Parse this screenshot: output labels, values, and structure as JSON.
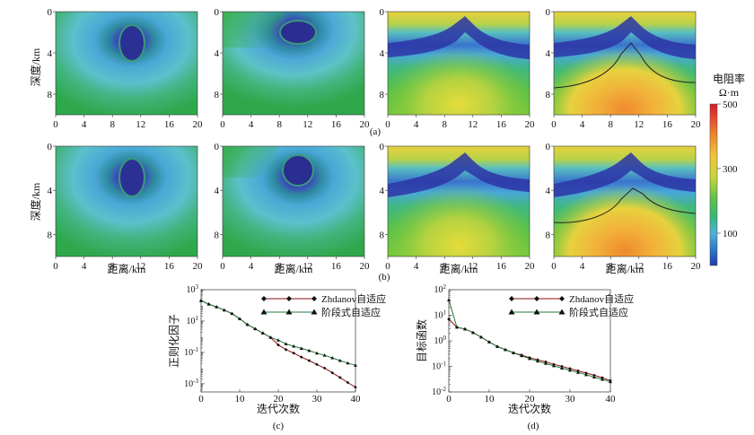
{
  "labels": {
    "depth_axis": "深度/km",
    "distance_axis": "距离/km",
    "colorbar_title": "电阻率",
    "colorbar_unit": "Ω·m",
    "caption_a": "(a)",
    "caption_b": "(b)",
    "caption_c": "(c)",
    "caption_d": "(d)"
  },
  "section_panels": {
    "x_ticks": [
      "0",
      "4",
      "8",
      "12",
      "16",
      "20"
    ],
    "y_ticks": [
      "0",
      "4",
      "8"
    ],
    "x_range_km": [
      0,
      20
    ],
    "depth_range_km": [
      0,
      10
    ]
  },
  "colorbar": {
    "ticks": [
      "500",
      "300",
      "100"
    ],
    "tick_values": [
      500,
      300,
      100
    ],
    "range": [
      0,
      500
    ],
    "colors": [
      "#1f3fae",
      "#2f78c8",
      "#4fb2d8",
      "#37b878",
      "#64c24a",
      "#c8d63a",
      "#f0c437",
      "#ee8a2e",
      "#e8442f",
      "#d21f2a"
    ]
  },
  "chart_data": [
    {
      "type": "line",
      "title": "",
      "xlabel": "迭代次数",
      "ylabel": "正则化因子",
      "x_range": [
        0,
        40
      ],
      "yscale": "log",
      "ylim": [
        0.0003,
        1000
      ],
      "x_ticks": [
        "0",
        "10",
        "20",
        "30",
        "40"
      ],
      "y_ticks": [
        {
          "value": 1000,
          "base": "10",
          "exp": "3"
        },
        {
          "value": 10,
          "base": "10",
          "exp": "1"
        },
        {
          "value": 0.1,
          "base": "10",
          "exp": "-1"
        },
        {
          "value": 0.001,
          "base": "10",
          "exp": "-3"
        }
      ],
      "legend": [
        "Zhdanov自适应",
        "阶段式自适应"
      ],
      "series": [
        {
          "name": "Zhdanov自适应",
          "color": "#8a1010",
          "marker": "diamond",
          "x": [
            0,
            2,
            4,
            6,
            8,
            10,
            12,
            14,
            16,
            18,
            20,
            22,
            24,
            26,
            28,
            30,
            32,
            34,
            36,
            38,
            40
          ],
          "values": [
            200,
            120,
            80,
            50,
            30,
            14,
            6,
            3.2,
            1.7,
            0.9,
            0.3,
            0.15,
            0.09,
            0.05,
            0.03,
            0.017,
            0.01,
            0.005,
            0.0025,
            0.0012,
            0.0006
          ]
        },
        {
          "name": "阶段式自适应",
          "color": "#1e7a3a",
          "marker": "triangle",
          "x": [
            0,
            2,
            4,
            6,
            8,
            10,
            12,
            14,
            16,
            18,
            20,
            22,
            24,
            26,
            28,
            30,
            32,
            34,
            36,
            38,
            40
          ],
          "values": [
            200,
            120,
            80,
            50,
            30,
            14,
            6,
            3.2,
            1.7,
            0.9,
            0.6,
            0.35,
            0.25,
            0.18,
            0.13,
            0.09,
            0.065,
            0.045,
            0.03,
            0.021,
            0.015
          ]
        }
      ]
    },
    {
      "type": "line",
      "title": "",
      "xlabel": "迭代次数",
      "ylabel": "目标函数",
      "x_range": [
        0,
        40
      ],
      "yscale": "log",
      "ylim": [
        0.01,
        100
      ],
      "x_ticks": [
        "0",
        "10",
        "20",
        "30",
        "40"
      ],
      "y_ticks": [
        {
          "value": 100,
          "base": "10",
          "exp": "2"
        },
        {
          "value": 10,
          "base": "10",
          "exp": "1"
        },
        {
          "value": 1,
          "base": "10",
          "exp": "0"
        },
        {
          "value": 0.1,
          "base": "10",
          "exp": "-1"
        },
        {
          "value": 0.01,
          "base": "10",
          "exp": "-2"
        }
      ],
      "legend": [
        "Zhdanov自适应",
        "阶段式自适应"
      ],
      "series": [
        {
          "name": "Zhdanov自适应",
          "color": "#8a1010",
          "marker": "diamond",
          "x": [
            0,
            2,
            4,
            6,
            8,
            10,
            12,
            14,
            16,
            18,
            20,
            22,
            24,
            26,
            28,
            30,
            32,
            34,
            36,
            38,
            40
          ],
          "values": [
            7,
            3.4,
            2.9,
            2.1,
            1.4,
            0.9,
            0.6,
            0.45,
            0.34,
            0.28,
            0.22,
            0.18,
            0.15,
            0.12,
            0.1,
            0.082,
            0.067,
            0.055,
            0.045,
            0.036,
            0.028
          ]
        },
        {
          "name": "阶段式自适应",
          "color": "#1e7a3a",
          "marker": "triangle",
          "x": [
            0,
            2,
            4,
            6,
            8,
            10,
            12,
            14,
            16,
            18,
            20,
            22,
            24,
            26,
            28,
            30,
            32,
            34,
            36,
            38,
            40
          ],
          "values": [
            40,
            3.4,
            2.9,
            2.1,
            1.4,
            0.9,
            0.6,
            0.45,
            0.34,
            0.26,
            0.2,
            0.16,
            0.13,
            0.105,
            0.085,
            0.07,
            0.058,
            0.047,
            0.038,
            0.031,
            0.025
          ]
        }
      ]
    }
  ]
}
